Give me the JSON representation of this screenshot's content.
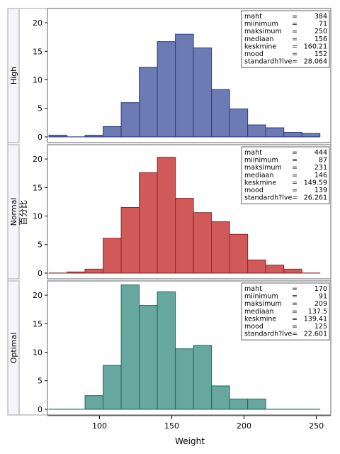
{
  "chart_data": {
    "type": "bar",
    "subtype": "histogram-panel",
    "xlabel": "Weight",
    "ylabel": "百分比",
    "xlim": [
      64,
      260
    ],
    "ylim": [
      -1,
      22.5
    ],
    "x_ticks": [
      100,
      150,
      200,
      250
    ],
    "y_ticks": [
      0,
      5,
      10,
      15,
      20
    ],
    "bin_width": 12.5,
    "first_bin_start": 65,
    "panels": [
      {
        "label": "High",
        "fill": "#6d7bb5",
        "stroke": "#2e3e78",
        "values": [
          0.3,
          0.0,
          0.3,
          1.8,
          6.0,
          12.2,
          16.7,
          18.0,
          15.6,
          8.3,
          4.9,
          2.1,
          1.6,
          0.8,
          0.6
        ],
        "stats": [
          {
            "name": "maht",
            "value": "384"
          },
          {
            "name": "miinimum",
            "value": "71"
          },
          {
            "name": "maksimum",
            "value": "250"
          },
          {
            "name": "mediaan",
            "value": "156"
          },
          {
            "name": "keskmine",
            "value": "160.21"
          },
          {
            "name": "mood",
            "value": "152"
          },
          {
            "name": "standardh?lve",
            "value": "28.064"
          }
        ]
      },
      {
        "label": "Normal",
        "fill": "#d05a5a",
        "stroke": "#8b2a2a",
        "values": [
          0.0,
          0.2,
          0.7,
          6.1,
          11.5,
          17.6,
          20.3,
          13.1,
          10.6,
          9.0,
          6.8,
          2.3,
          1.4,
          0.7,
          0.0
        ],
        "stats": [
          {
            "name": "maht",
            "value": "444"
          },
          {
            "name": "miinimum",
            "value": "87"
          },
          {
            "name": "maksimum",
            "value": "231"
          },
          {
            "name": "mediaan",
            "value": "146"
          },
          {
            "name": "keskmine",
            "value": "149.59"
          },
          {
            "name": "mood",
            "value": "139"
          },
          {
            "name": "standardh?lve",
            "value": "26.261"
          }
        ]
      },
      {
        "label": "Optimal",
        "fill": "#66a8a0",
        "stroke": "#1c6b5e",
        "values": [
          0.0,
          0.0,
          2.4,
          7.7,
          21.8,
          18.2,
          20.6,
          10.6,
          11.2,
          4.1,
          1.8,
          1.8,
          0.0,
          0.0,
          0.0
        ],
        "stats": [
          {
            "name": "maht",
            "value": "170"
          },
          {
            "name": "miinimum",
            "value": "91"
          },
          {
            "name": "maksimum",
            "value": "209"
          },
          {
            "name": "mediaan",
            "value": "137.5"
          },
          {
            "name": "keskmine",
            "value": "139.41"
          },
          {
            "name": "mood",
            "value": "125"
          },
          {
            "name": "standardh?lve",
            "value": "22.601"
          }
        ]
      }
    ]
  }
}
